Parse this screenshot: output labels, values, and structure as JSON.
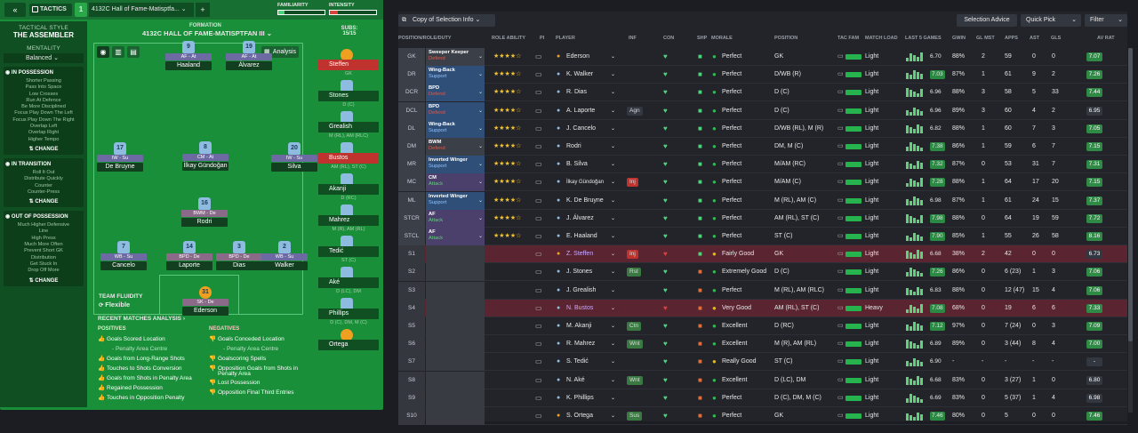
{
  "tactics": {
    "title": "TACTICS",
    "slot": "1",
    "name": "4132C Hall of Fame-Matisptfa...",
    "add": "+",
    "familiarity": "FAMILIARITY",
    "intensity": "INTENSITY"
  },
  "side": {
    "style_label": "TACTICAL STYLE",
    "style": "THE ASSEMBLER",
    "mentality_label": "MENTALITY",
    "mentality": "Balanced",
    "in_possession": {
      "title": "IN POSSESSION",
      "lines": [
        "Shorter Passing",
        "Pass Into Space",
        "Low Crosses",
        "Run At Defence",
        "Be More Disciplined",
        "Focus Play Down The Left",
        "Focus Play Down The Right",
        "Overlap Left",
        "Overlap Right",
        "Higher Tempo"
      ],
      "change": "CHANGE"
    },
    "in_transition": {
      "title": "IN TRANSITION",
      "lines": [
        "Roll It Out",
        "Distribute Quickly",
        "Counter",
        "Counter-Press"
      ],
      "change": "CHANGE"
    },
    "out_of_possession": {
      "title": "OUT OF POSSESSION",
      "lines": [
        "Much Higher Defensive",
        "Line",
        "High Press",
        "Much More Often",
        "Prevent Short GK",
        "Distribution",
        "Get Stuck In",
        "Drop Off More"
      ],
      "change": "CHANGE"
    }
  },
  "formation": {
    "label": "FORMATION",
    "name": "4132C HALL OF FAME-MATISPTFAN III",
    "analysis": "Analysis",
    "subs_label": "SUBS:",
    "subs": "15/15",
    "fluidity_label": "TEAM FLUIDITY",
    "fluidity": "Flexible"
  },
  "pitch_players": [
    {
      "num": "9",
      "role": "AF - At",
      "name": "Haaland"
    },
    {
      "num": "19",
      "role": "AF - At",
      "name": "Álvarez"
    },
    {
      "num": "17",
      "role": "IW - Su",
      "name": "De Bruyne"
    },
    {
      "num": "8",
      "role": "CM - At",
      "name": "İlkay Gündoğan"
    },
    {
      "num": "20",
      "role": "IW - Su",
      "name": "Silva"
    },
    {
      "num": "16",
      "role": "BWM - De",
      "name": "Rodri"
    },
    {
      "num": "7",
      "role": "WB - Su",
      "name": "Cancelo"
    },
    {
      "num": "14",
      "role": "BPD - De",
      "name": "Laporte"
    },
    {
      "num": "3",
      "role": "BPD - De",
      "name": "Dias"
    },
    {
      "num": "2",
      "role": "WB - Su",
      "name": "Walker"
    },
    {
      "num": "31",
      "role": "SK - De",
      "name": "Ederson"
    }
  ],
  "subs": [
    {
      "name": "Steffen",
      "pos": "GK"
    },
    {
      "name": "Stones",
      "pos": "D (C)"
    },
    {
      "name": "Grealish",
      "pos": "M (RL), AM (RLC)"
    },
    {
      "name": "Bustos",
      "pos": "AM (RL), ST (C)"
    },
    {
      "name": "Akanji",
      "pos": "D (RC)"
    },
    {
      "name": "Mahrez",
      "pos": "M (R), AM (RL)"
    },
    {
      "name": "Tedić",
      "pos": "ST (C)"
    },
    {
      "name": "Aké",
      "pos": "D (LC), DM"
    },
    {
      "name": "Phillips",
      "pos": "D (C), DM, M (C)"
    },
    {
      "name": "Ortega",
      "pos": ""
    }
  ],
  "analysis": {
    "title": "RECENT MATCHES ANALYSIS",
    "positives_label": "POSITIVES",
    "positives": [
      "Goals Scored Location",
      "- Penalty Area Centre",
      "Goals from Long-Range Shots",
      "Touches to Shots Conversion",
      "Goals from Shots in Penalty Area",
      "Regained Possession",
      "Touches in Opposition Penalty"
    ],
    "negatives_label": "NEGATIVES",
    "negatives": [
      "Goals Conceded Location",
      "- Penalty Area Centre",
      "Goalscoring Spells",
      "Opposition Goals from Shots in",
      "Penalty Area",
      "Lost Possession",
      "Opposition Final Third Entries"
    ]
  },
  "toolbar": {
    "copy": "Copy of Selection Info",
    "advice": "Selection Advice",
    "quick": "Quick Pick",
    "filter": "Filter"
  },
  "headers": [
    "POSITION/ROLE/DUTY",
    "ROLE ABILITY",
    "PI",
    "PLAYER",
    "INF",
    "CON",
    "SHP",
    "MORALE",
    "POSITION",
    "TAC FAM",
    "MATCH LOAD",
    "LAST 5 GAMES",
    "GWIN",
    "GL MST",
    "APPS",
    "AST",
    "GLS",
    "AV RAT"
  ],
  "rows": [
    {
      "pos": "GK",
      "role": "Sweeper Keeper",
      "duty": "Defend",
      "player": "Ederson",
      "inf": "",
      "morale": "Perfect",
      "position": "GK",
      "load": "Light",
      "l5": "6.70",
      "gwin": "88%",
      "glmst": "2",
      "apps": "59",
      "ast": "0",
      "gls": "0",
      "rat": "7.07"
    },
    {
      "pos": "DR",
      "role": "Wing-Back",
      "duty": "Support",
      "player": "K. Walker",
      "inf": "",
      "morale": "Perfect",
      "position": "D/WB (R)",
      "load": "Light",
      "l5": "7.03",
      "gwin": "87%",
      "glmst": "1",
      "apps": "61",
      "ast": "9",
      "gls": "2",
      "rat": "7.26"
    },
    {
      "pos": "DCR",
      "role": "BPD",
      "duty": "Defend",
      "player": "R. Dias",
      "inf": "",
      "morale": "Perfect",
      "position": "D (C)",
      "load": "Light",
      "l5": "6.96",
      "gwin": "88%",
      "glmst": "3",
      "apps": "58",
      "ast": "5",
      "gls": "33",
      "rat": "7.44"
    },
    {
      "pos": "DCL",
      "role": "BPD",
      "duty": "Defend",
      "player": "A. Laporte",
      "inf": "Agn",
      "morale": "Perfect",
      "position": "D (C)",
      "load": "Light",
      "l5": "6.96",
      "gwin": "89%",
      "glmst": "3",
      "apps": "60",
      "ast": "4",
      "gls": "2",
      "rat": "6.95"
    },
    {
      "pos": "DL",
      "role": "Wing-Back",
      "duty": "Support",
      "player": "J. Cancelo",
      "inf": "",
      "morale": "Perfect",
      "position": "D/WB (RL), M (R)",
      "load": "Light",
      "l5": "6.82",
      "gwin": "88%",
      "glmst": "1",
      "apps": "60",
      "ast": "7",
      "gls": "3",
      "rat": "7.05"
    },
    {
      "pos": "DM",
      "role": "BWM",
      "duty": "Defend",
      "player": "Rodri",
      "inf": "",
      "morale": "Perfect",
      "position": "DM, M (C)",
      "load": "Light",
      "l5": "7.38",
      "gwin": "86%",
      "glmst": "1",
      "apps": "59",
      "ast": "6",
      "gls": "7",
      "rat": "7.15"
    },
    {
      "pos": "MR",
      "role": "Inverted Winger",
      "duty": "Support",
      "player": "B. Silva",
      "inf": "",
      "morale": "Perfect",
      "position": "M/AM (RC)",
      "load": "Light",
      "l5": "7.32",
      "gwin": "87%",
      "glmst": "0",
      "apps": "53",
      "ast": "31",
      "gls": "7",
      "rat": "7.31"
    },
    {
      "pos": "MC",
      "role": "CM",
      "duty": "Attack",
      "player": "İlkay Gündoğan",
      "inf": "Inj",
      "morale": "Perfect",
      "position": "M/AM (C)",
      "load": "Light",
      "l5": "7.28",
      "gwin": "88%",
      "glmst": "1",
      "apps": "64",
      "ast": "17",
      "gls": "20",
      "rat": "7.15"
    },
    {
      "pos": "ML",
      "role": "Inverted Winger",
      "duty": "Support",
      "player": "K. De Bruyne",
      "inf": "",
      "morale": "Perfect",
      "position": "M (RL), AM (C)",
      "load": "Light",
      "l5": "6.98",
      "gwin": "87%",
      "glmst": "1",
      "apps": "61",
      "ast": "24",
      "gls": "15",
      "rat": "7.37"
    },
    {
      "pos": "STCR",
      "role": "AF",
      "duty": "Attack",
      "player": "J. Álvarez",
      "inf": "",
      "morale": "Perfect",
      "position": "AM (RL), ST (C)",
      "load": "Light",
      "l5": "7.98",
      "gwin": "88%",
      "glmst": "0",
      "apps": "64",
      "ast": "19",
      "gls": "59",
      "rat": "7.72"
    },
    {
      "pos": "STCL",
      "role": "AF",
      "duty": "Attack",
      "player": "E. Haaland",
      "inf": "",
      "morale": "Perfect",
      "position": "ST (C)",
      "load": "Light",
      "l5": "7.90",
      "gwin": "85%",
      "glmst": "1",
      "apps": "55",
      "ast": "26",
      "gls": "58",
      "rat": "8.16"
    },
    {
      "pos": "S1",
      "role": "",
      "duty": "",
      "player": "Z. Steffen",
      "inf": "Inj",
      "morale": "Fairly Good",
      "position": "GK",
      "load": "Light",
      "l5": "6.68",
      "gwin": "38%",
      "glmst": "2",
      "apps": "42",
      "ast": "0",
      "gls": "0",
      "rat": "6.73"
    },
    {
      "pos": "S2",
      "role": "",
      "duty": "",
      "player": "J. Stones",
      "inf": "Rst",
      "morale": "Extremely Good",
      "position": "D (C)",
      "load": "Light",
      "l5": "7.26",
      "gwin": "86%",
      "glmst": "0",
      "apps": "6 (23)",
      "ast": "1",
      "gls": "3",
      "rat": "7.06"
    },
    {
      "pos": "S3",
      "role": "",
      "duty": "",
      "player": "J. Grealish",
      "inf": "",
      "morale": "Perfect",
      "position": "M (RL), AM (RLC)",
      "load": "Light",
      "l5": "6.83",
      "gwin": "88%",
      "glmst": "0",
      "apps": "12 (47)",
      "ast": "15",
      "gls": "4",
      "rat": "7.06"
    },
    {
      "pos": "S4",
      "role": "",
      "duty": "",
      "player": "N. Bustos",
      "inf": "",
      "morale": "Very Good",
      "position": "AM (RL), ST (C)",
      "load": "Heavy",
      "l5": "7.08",
      "gwin": "68%",
      "glmst": "0",
      "apps": "19",
      "ast": "6",
      "gls": "6",
      "rat": "7.33"
    },
    {
      "pos": "S5",
      "role": "",
      "duty": "",
      "player": "M. Akanji",
      "inf": "Ctn",
      "morale": "Excellent",
      "position": "D (RC)",
      "load": "Light",
      "l5": "7.12",
      "gwin": "97%",
      "glmst": "0",
      "apps": "7 (24)",
      "ast": "0",
      "gls": "3",
      "rat": "7.09"
    },
    {
      "pos": "S6",
      "role": "",
      "duty": "",
      "player": "R. Mahrez",
      "inf": "Wnt",
      "morale": "Excellent",
      "position": "M (R), AM (RL)",
      "load": "Light",
      "l5": "6.89",
      "gwin": "89%",
      "glmst": "0",
      "apps": "3 (44)",
      "ast": "8",
      "gls": "4",
      "rat": "7.00"
    },
    {
      "pos": "S7",
      "role": "",
      "duty": "",
      "player": "S. Tedić",
      "inf": "",
      "morale": "Really Good",
      "position": "ST (C)",
      "load": "Light",
      "l5": "6.90",
      "gwin": "-",
      "glmst": "-",
      "apps": "-",
      "ast": "-",
      "gls": "-",
      "rat": "-"
    },
    {
      "pos": "S8",
      "role": "",
      "duty": "",
      "player": "N. Aké",
      "inf": "Wnt",
      "morale": "Excellent",
      "position": "D (LC), DM",
      "load": "Light",
      "l5": "6.68",
      "gwin": "83%",
      "glmst": "0",
      "apps": "3 (27)",
      "ast": "1",
      "gls": "0",
      "rat": "6.80"
    },
    {
      "pos": "S9",
      "role": "",
      "duty": "",
      "player": "K. Phillips",
      "inf": "",
      "morale": "Perfect",
      "position": "D (C), DM, M (C)",
      "load": "Light",
      "l5": "6.69",
      "gwin": "83%",
      "glmst": "0",
      "apps": "5 (37)",
      "ast": "1",
      "gls": "4",
      "rat": "6.98"
    },
    {
      "pos": "S10",
      "role": "",
      "duty": "",
      "player": "S. Ortega",
      "inf": "Sus",
      "morale": "Perfect",
      "position": "GK",
      "load": "Light",
      "l5": "7.46",
      "gwin": "80%",
      "glmst": "0",
      "apps": "5",
      "ast": "0",
      "gls": "0",
      "rat": "7.46"
    }
  ]
}
